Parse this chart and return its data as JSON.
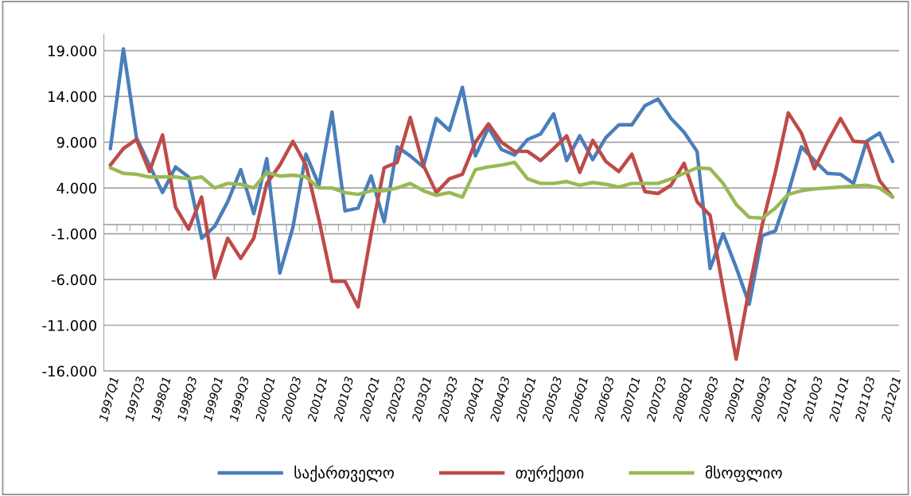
{
  "chart_data": {
    "type": "line",
    "categories": [
      "1997Q1",
      null,
      "1997Q3",
      null,
      "1998Q1",
      null,
      "1998Q3",
      null,
      "1999Q1",
      null,
      "1999Q3",
      null,
      "2000Q1",
      null,
      "2000Q3",
      null,
      "2001Q1",
      null,
      "2001Q3",
      null,
      "2002Q1",
      null,
      "2002Q3",
      null,
      "2003Q1",
      null,
      "2003Q3",
      null,
      "2004Q1",
      null,
      "2004Q3",
      null,
      "2005Q1",
      null,
      "2005Q3",
      null,
      "2006Q1",
      null,
      "2006Q3",
      null,
      "2007Q1",
      null,
      "2007Q3",
      null,
      "2008Q1",
      null,
      "2008Q3",
      null,
      "2009Q1",
      null,
      "2009Q3",
      null,
      "2010Q1",
      null,
      "2010Q3",
      null,
      "2011Q1",
      null,
      "2011Q3",
      null,
      "2012Q1"
    ],
    "series": [
      {
        "name": "საქართველო",
        "color": "#4a7ebb",
        "values": [
          8.3,
          19.2,
          9.5,
          6.5,
          3.5,
          6.3,
          5.2,
          -1.5,
          -0.2,
          2.5,
          6.0,
          1.2,
          7.2,
          -5.3,
          -0.3,
          7.7,
          4.3,
          12.3,
          1.5,
          1.8,
          5.3,
          0.3,
          8.5,
          7.5,
          6.3,
          11.6,
          10.3,
          15.0,
          7.5,
          10.6,
          8.2,
          7.6,
          9.3,
          9.9,
          12.1,
          7.0,
          9.7,
          7.1,
          9.5,
          10.9,
          10.9,
          13.0,
          13.7,
          11.6,
          10.1,
          8.0,
          -4.8,
          -1.0,
          -4.7,
          -8.7,
          -1.2,
          -0.7,
          3.5,
          8.5,
          7.0,
          5.6,
          5.5,
          4.5,
          9.1,
          10.0,
          6.9
        ]
      },
      {
        "name": "თურქეთი",
        "color": "#be4b48",
        "values": [
          6.5,
          8.3,
          9.3,
          5.8,
          9.8,
          1.9,
          -0.5,
          3.0,
          -5.8,
          -1.5,
          -3.7,
          -1.5,
          4.5,
          6.5,
          9.1,
          6.5,
          0.5,
          -6.2,
          -6.2,
          -9.0,
          -1.0,
          6.2,
          6.8,
          11.7,
          6.5,
          3.5,
          5.0,
          5.5,
          9.0,
          11.0,
          9.0,
          8.0,
          8.0,
          7.0,
          8.3,
          9.7,
          5.7,
          9.2,
          6.9,
          5.8,
          7.7,
          3.6,
          3.4,
          4.3,
          6.7,
          2.5,
          1.0,
          -7.0,
          -14.7,
          -7.0,
          0.0,
          5.7,
          12.2,
          10.0,
          6.1,
          9.0,
          11.6,
          9.1,
          9.0,
          4.8,
          3.0
        ]
      },
      {
        "name": "მსოფლიო",
        "color": "#98b954",
        "values": [
          6.2,
          5.6,
          5.5,
          5.2,
          5.2,
          5.2,
          5.0,
          5.2,
          4.0,
          4.5,
          4.4,
          4.0,
          5.7,
          5.3,
          5.4,
          5.2,
          4.0,
          4.0,
          3.5,
          3.3,
          3.7,
          3.7,
          4.0,
          4.5,
          3.7,
          3.2,
          3.5,
          3.0,
          6.0,
          6.3,
          6.5,
          6.8,
          5.0,
          4.5,
          4.5,
          4.7,
          4.3,
          4.6,
          4.4,
          4.1,
          4.5,
          4.5,
          4.5,
          5.0,
          5.6,
          6.2,
          6.1,
          4.5,
          2.2,
          0.8,
          0.7,
          1.8,
          3.3,
          3.7,
          3.9,
          4.0,
          4.1,
          4.2,
          4.3,
          4.0,
          3.0
        ]
      }
    ],
    "ylim": [
      -16,
      20.8
    ],
    "yticks": [
      {
        "value": -16,
        "label": "-16.000"
      },
      {
        "value": -11,
        "label": "-11.000"
      },
      {
        "value": -6,
        "label": "-6.000"
      },
      {
        "value": -1,
        "label": "-1.000"
      },
      {
        "value": 4,
        "label": "4.000"
      },
      {
        "value": 9,
        "label": "9.000"
      },
      {
        "value": 14,
        "label": "14.000"
      },
      {
        "value": 19,
        "label": "19.000"
      }
    ],
    "grid": "y",
    "legend": "bottom",
    "marker": "none",
    "line_style": "solid"
  }
}
